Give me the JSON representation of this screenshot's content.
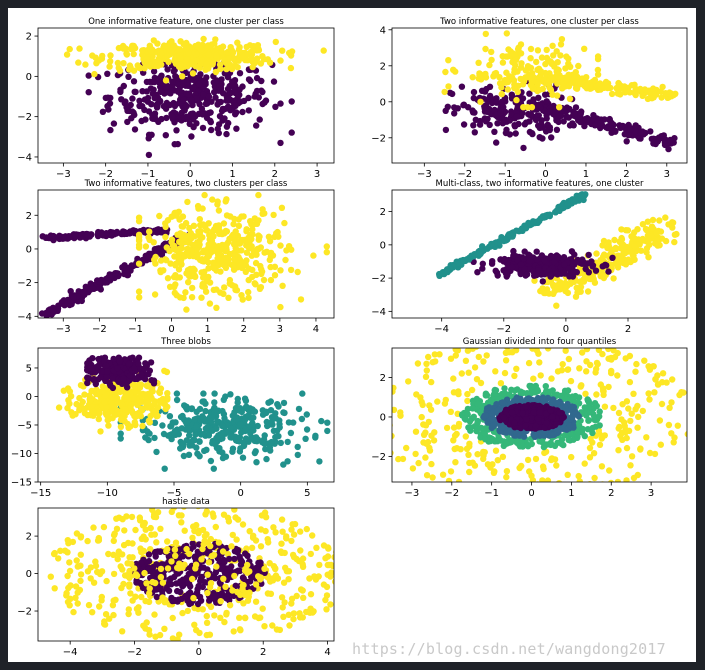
{
  "watermark": "https://blog.csdn.net/wangdong2017",
  "colors": {
    "purple": "#440154",
    "navy": "#31688e",
    "teal": "#21918c",
    "green": "#35b779",
    "yellow": "#fde725"
  },
  "chart_data": [
    {
      "type": "scatter",
      "title": "One informative feature, one cluster per class",
      "xlim": [
        -3.6,
        3.4
      ],
      "ylim": [
        -4.3,
        2.4
      ],
      "xticks": [
        -3,
        -2,
        -1,
        0,
        1,
        2,
        3
      ],
      "yticks": [
        -4,
        -2,
        0,
        2
      ],
      "series": [
        {
          "color": "#440154",
          "gen": "blob",
          "n": 380,
          "cx": 0,
          "sx": 0.95,
          "cy": -1,
          "sy": 0.9,
          "xr": [
            -2.4,
            2.4
          ],
          "yr": [
            -3.9,
            0.6
          ]
        },
        {
          "color": "#fde725",
          "gen": "blob",
          "n": 360,
          "cx": 0,
          "sx": 1.0,
          "cy": 1,
          "sy": 0.35,
          "xr": [
            -3.3,
            3.2
          ],
          "yr": [
            -0.2,
            2
          ]
        }
      ]
    },
    {
      "type": "scatter",
      "title": "Two informative features, one cluster per class",
      "xlim": [
        -3.8,
        3.5
      ],
      "ylim": [
        -3.4,
        4.1
      ],
      "xticks": [
        -3,
        -2,
        -1,
        0,
        1,
        2,
        3
      ],
      "yticks": [
        -2,
        0,
        2,
        4
      ],
      "series": [
        {
          "color": "#440154",
          "gen": "blob",
          "n": 190,
          "cx": -0.9,
          "sx": 0.7,
          "cy": -0.6,
          "sy": 0.75,
          "xr": [
            -3.2,
            0.8
          ],
          "yr": [
            -3,
            1.5
          ]
        },
        {
          "color": "#440154",
          "gen": "line",
          "n": 170,
          "x0": -0.2,
          "y0": -0.3,
          "x1": 3.2,
          "y1": -2.3,
          "jit": 0.18
        },
        {
          "color": "#fde725",
          "gen": "blob",
          "n": 170,
          "cx": -0.5,
          "sx": 0.8,
          "cy": 1.6,
          "sy": 0.8,
          "xr": [
            -3.2,
            1.3
          ],
          "yr": [
            -0.3,
            3.8
          ]
        },
        {
          "color": "#fde725",
          "gen": "line",
          "n": 150,
          "x0": 0,
          "y0": 1.3,
          "x1": 3.2,
          "y1": 0.3,
          "jit": 0.15
        }
      ]
    },
    {
      "type": "scatter",
      "title": "Two informative features, two clusters per class",
      "xlim": [
        -3.7,
        4.5
      ],
      "ylim": [
        -4.1,
        3.5
      ],
      "xticks": [
        -3,
        -2,
        -1,
        0,
        1,
        2,
        3,
        4
      ],
      "yticks": [
        -4,
        -2,
        0,
        2
      ],
      "series": [
        {
          "color": "#440154",
          "gen": "line",
          "n": 170,
          "x0": -3.5,
          "y0": 0.65,
          "x1": -0.1,
          "y1": 1.1,
          "jit": 0.06
        },
        {
          "color": "#440154",
          "gen": "line",
          "n": 200,
          "x0": -3.5,
          "y0": -3.9,
          "x1": 0.5,
          "y1": 0.9,
          "jit": 0.12
        },
        {
          "color": "#fde725",
          "gen": "blob",
          "n": 420,
          "cx": 1.2,
          "sx": 1.0,
          "cy": -0.3,
          "sy": 1.3,
          "xr": [
            -0.9,
            4.3
          ],
          "yr": [
            -3.6,
            3.2
          ]
        }
      ]
    },
    {
      "type": "scatter",
      "title": "Multi-class, two informative features, one cluster",
      "xlim": [
        -5.6,
        3.9
      ],
      "ylim": [
        -4.4,
        3.3
      ],
      "xticks": [
        -4,
        -2,
        0,
        2
      ],
      "yticks": [
        -4,
        -2,
        0,
        2
      ],
      "series": [
        {
          "color": "#fde725",
          "gen": "line",
          "n": 240,
          "x0": -0.5,
          "y0": -2.8,
          "x1": 3.3,
          "y1": 1.1,
          "jit": 0.45
        },
        {
          "color": "#440154",
          "gen": "blob",
          "n": 260,
          "cx": -0.8,
          "sx": 0.8,
          "cy": -1.2,
          "sy": 0.35,
          "xr": [
            -3.5,
            1.5
          ],
          "yr": [
            -2.5,
            0
          ]
        },
        {
          "color": "#21918c",
          "gen": "line",
          "n": 200,
          "x0": -4.1,
          "y0": -1.8,
          "x1": 0.7,
          "y1": 3.1,
          "jit": 0.07
        }
      ]
    },
    {
      "type": "scatter",
      "title": "Three blobs",
      "xlim": [
        -15.2,
        7
      ],
      "ylim": [
        -15,
        8.5
      ],
      "xticks": [
        -15,
        -10,
        -5,
        0,
        5
      ],
      "yticks": [
        -15,
        -10,
        -5,
        0,
        5
      ],
      "series": [
        {
          "color": "#21918c",
          "gen": "blob",
          "n": 330,
          "cx": -1.5,
          "sx": 3.2,
          "cy": -5.5,
          "sy": 2.6,
          "xr": [
            -9,
            6.5
          ],
          "yr": [
            -13.5,
            0.5
          ]
        },
        {
          "color": "#fde725",
          "gen": "blob",
          "n": 300,
          "cx": -9,
          "sx": 1.7,
          "cy": -0.5,
          "sy": 2.2,
          "xr": [
            -14.5,
            -5.5
          ],
          "yr": [
            -9,
            4.5
          ]
        },
        {
          "color": "#440154",
          "gen": "blob",
          "n": 200,
          "cx": -9.2,
          "sx": 1.3,
          "cy": 4.4,
          "sy": 1.2,
          "xr": [
            -11.5,
            -6.5
          ],
          "yr": [
            1.5,
            6.8
          ]
        }
      ]
    },
    {
      "type": "scatter",
      "title": "Gaussian divided into four quantiles",
      "xlim": [
        -3.5,
        3.9
      ],
      "ylim": [
        -3.3,
        3.5
      ],
      "xticks": [
        -3,
        -2,
        -1,
        0,
        1,
        2,
        3
      ],
      "yticks": [
        -2,
        0,
        2
      ],
      "series": [
        {
          "color": "#fde725",
          "gen": "ring",
          "n": 330,
          "r0": 1.55,
          "r1": 3.6,
          "rx": 1.15,
          "ry": 1.1
        },
        {
          "color": "#35b779",
          "gen": "ring",
          "n": 260,
          "r0": 1.05,
          "r1": 1.6,
          "rx": 1.12,
          "ry": 1.0
        },
        {
          "color": "#31688e",
          "gen": "ring",
          "n": 260,
          "r0": 0.65,
          "r1": 1.08,
          "rx": 1.15,
          "ry": 0.95
        },
        {
          "color": "#440154",
          "gen": "ring",
          "n": 300,
          "r0": 0,
          "r1": 0.68,
          "rx": 1.2,
          "ry": 0.9
        }
      ]
    },
    {
      "type": "scatter",
      "title": "hastie data",
      "xlim": [
        -5,
        4.2
      ],
      "ylim": [
        -3.6,
        3.5
      ],
      "xticks": [
        -4,
        -2,
        0,
        2,
        4
      ],
      "yticks": [
        -2,
        0,
        2
      ],
      "series": [
        {
          "color": "#fde725",
          "gen": "ring",
          "n": 380,
          "r0": 1.0,
          "r1": 3.8,
          "rx": 1.25,
          "ry": 0.95
        },
        {
          "color": "#440154",
          "gen": "ring",
          "n": 330,
          "r0": 0,
          "r1": 1.65,
          "rx": 1.25,
          "ry": 1.0
        },
        {
          "color": "#fde725",
          "gen": "ring",
          "n": 90,
          "r0": 0.2,
          "r1": 2.0,
          "rx": 1.25,
          "ry": 1.0
        }
      ]
    }
  ]
}
